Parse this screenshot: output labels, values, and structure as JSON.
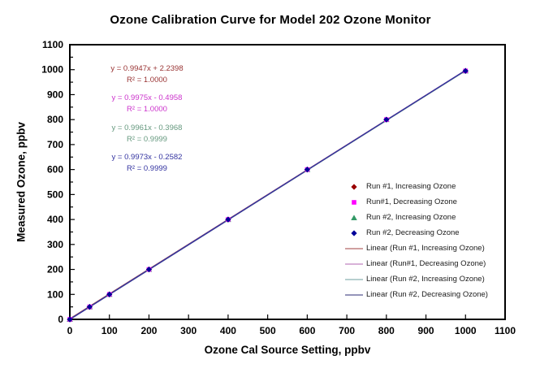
{
  "chart_data": {
    "type": "scatter",
    "title": "Ozone Calibration Curve for Model 202 Ozone Monitor",
    "xlabel": "Ozone Cal Source Setting, ppbv",
    "ylabel": "Measured Ozone, ppbv",
    "xlim": [
      0,
      1100
    ],
    "ylim": [
      0,
      1100
    ],
    "x_tick_step": 100,
    "y_tick_step": 100,
    "y_minor_tick_step": 50,
    "grid": false,
    "legend_position": "middle-right-inside",
    "x": [
      0,
      50,
      100,
      200,
      400,
      600,
      800,
      1000
    ],
    "series": [
      {
        "name": "Run #1, Increasing Ozone",
        "marker": "diamond",
        "color": "#990000",
        "values": [
          0,
          50,
          100,
          200,
          400,
          600,
          800,
          995
        ]
      },
      {
        "name": "Run#1, Decreasing Ozone",
        "marker": "square",
        "color": "#FF00FF",
        "values": [
          0,
          50,
          100,
          200,
          400,
          600,
          800,
          995
        ]
      },
      {
        "name": "Run #2, Increasing Ozone",
        "marker": "triangle",
        "color": "#339966",
        "values": [
          0,
          50,
          100,
          200,
          400,
          600,
          800,
          995
        ]
      },
      {
        "name": "Run #2, Decreasing Ozone",
        "marker": "diamond",
        "color": "#000099",
        "values": [
          0,
          50,
          100,
          200,
          400,
          600,
          800,
          995
        ]
      }
    ],
    "trendlines": [
      {
        "label": "Linear (Run #1, Increasing Ozone)",
        "slope": 0.9947,
        "intercept": 2.2398,
        "color": "#C08080"
      },
      {
        "label": "Linear (Run#1, Decreasing Ozone)",
        "slope": 0.9975,
        "intercept": -0.4958,
        "color": "#CC99CC"
      },
      {
        "label": "Linear (Run #2, Increasing Ozone)",
        "slope": 0.9961,
        "intercept": -0.3968,
        "color": "#9FBFBF"
      },
      {
        "label": "Linear (Run #2, Decreasing Ozone)",
        "slope": 0.9973,
        "intercept": -0.2582,
        "color": "#7272A3"
      }
    ]
  },
  "equations": [
    {
      "formula": "y = 0.9947x + 2.2398",
      "r2": "R² = 1.0000",
      "color": "#993333"
    },
    {
      "formula": "y = 0.9975x - 0.4958",
      "r2": "R² = 1.0000",
      "color": "#CC33CC"
    },
    {
      "formula": "y = 0.9961x - 0.3968",
      "r2": "R² = 0.9999",
      "color": "#66997F"
    },
    {
      "formula": "y = 0.9973x - 0.2582",
      "r2": "R² = 0.9999",
      "color": "#3333A0"
    }
  ]
}
